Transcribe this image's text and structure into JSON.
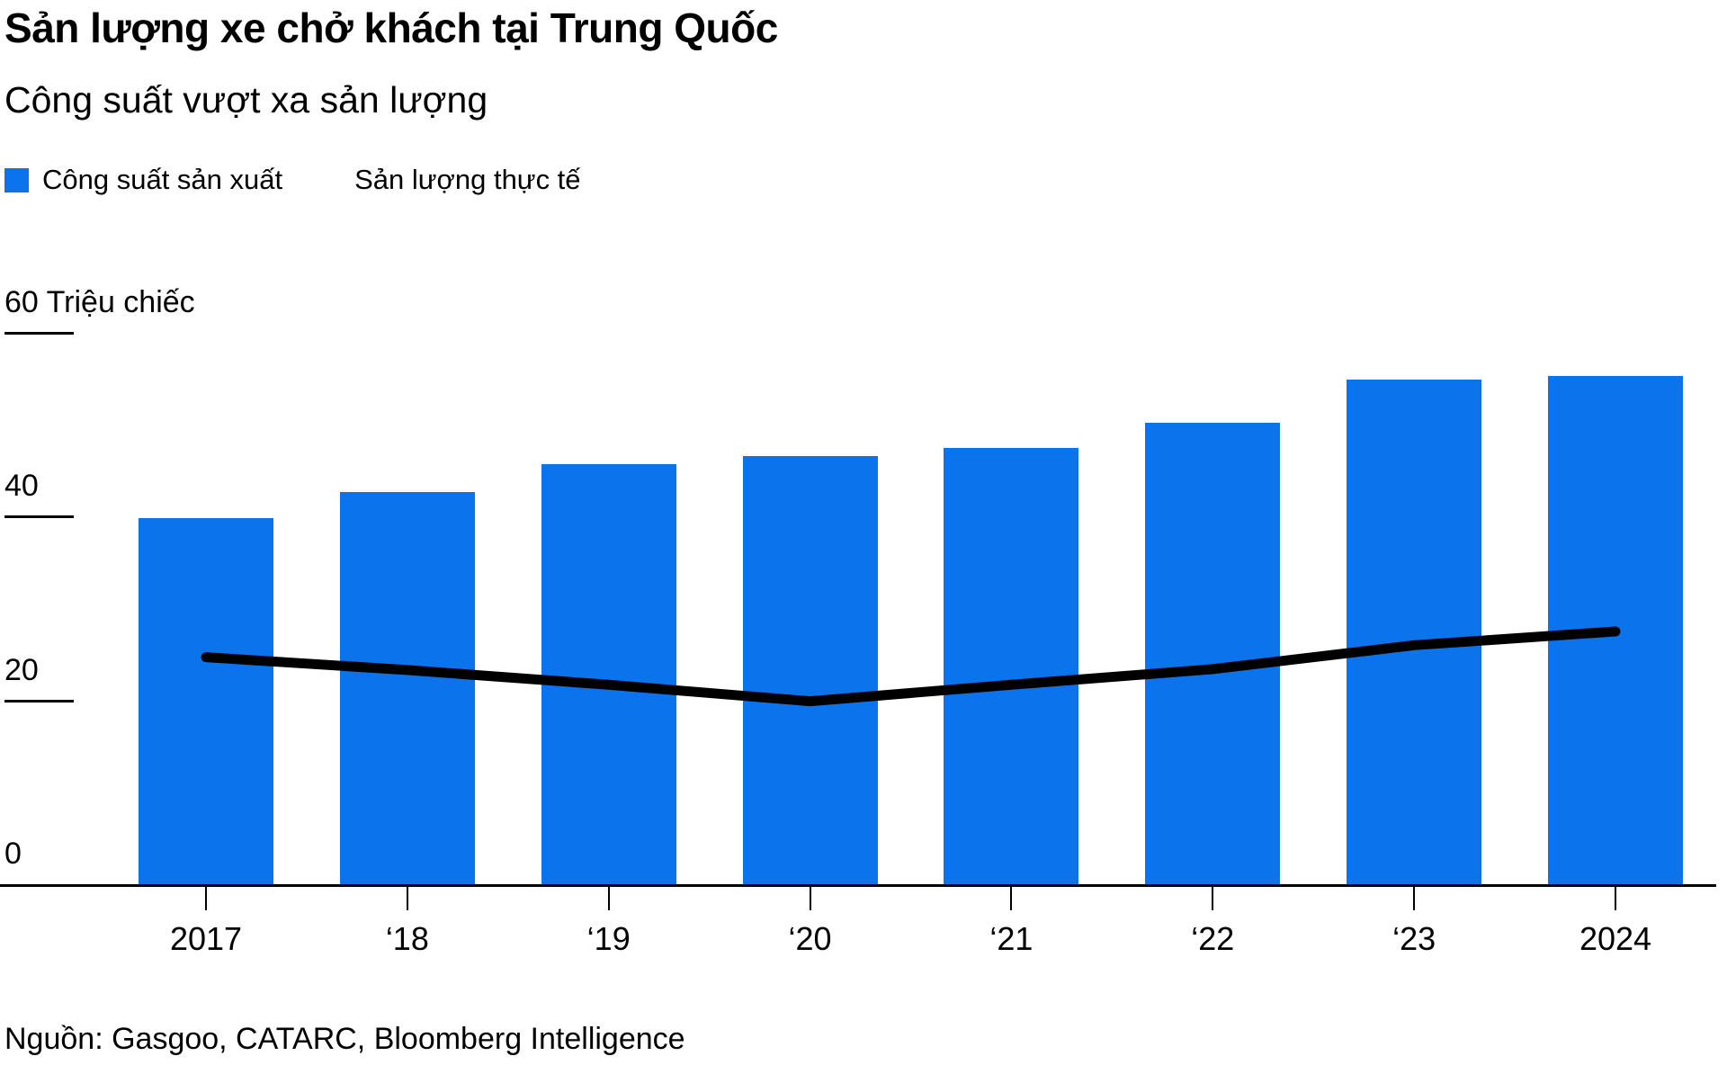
{
  "header": {
    "title": "Sản lượng xe chở khách tại Trung Quốc",
    "subtitle": "Công suất vượt xa sản lượng"
  },
  "legend": {
    "capacity": "Công suất sản xuất",
    "production": "Sản lượng thực tế"
  },
  "footer": {
    "source": "Nguồn: Gasgoo, CATARC, Bloomberg Intelligence"
  },
  "colors": {
    "bar_blue": "#0b73ec",
    "line_black": "#000000",
    "text": "#000000",
    "background": "#ffffff"
  },
  "chart_data": {
    "type": "bar",
    "title": "Sản lượng xe chở khách tại Trung Quốc",
    "subtitle": "Công suất vượt xa sản lượng",
    "categories": [
      "2017",
      "‘18",
      "‘19",
      "‘20",
      "‘21",
      "‘22",
      "‘23",
      "2024"
    ],
    "series": [
      {
        "name": "Công suất sản xuất",
        "type": "bar",
        "color": "#0b73ec",
        "values": [
          40.0,
          42.9,
          45.9,
          46.8,
          47.7,
          50.4,
          55.1,
          55.5
        ]
      },
      {
        "name": "Sản lượng thực tế",
        "type": "line",
        "color": "#000000",
        "values": [
          24.9,
          23.5,
          21.9,
          20.1,
          21.9,
          23.6,
          26.2,
          27.7
        ]
      }
    ],
    "xlabel": "",
    "ylabel": "",
    "ylabel_unit": "Triệu chiếc",
    "yticks": [
      0,
      20,
      40,
      60
    ],
    "ylim": [
      0,
      60
    ],
    "grid": false,
    "legend_position": "top-left",
    "source": "Nguồn: Gasgoo, CATARC, Bloomberg Intelligence"
  }
}
